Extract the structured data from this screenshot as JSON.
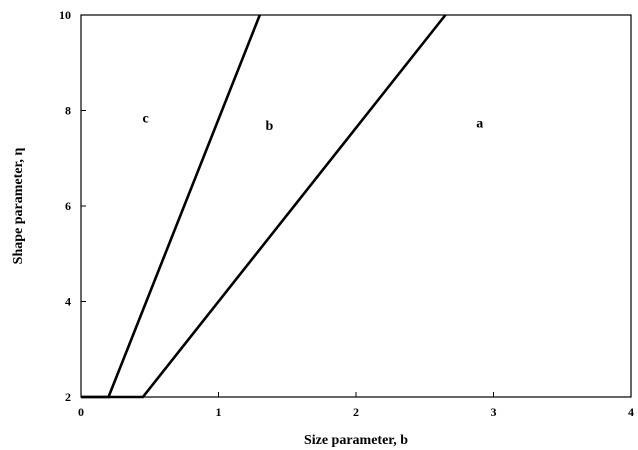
{
  "chart_data": {
    "type": "line",
    "title": "",
    "xlabel": "Size parameter, b",
    "ylabel": "Shape parameter, η",
    "xlim": [
      0,
      4
    ],
    "ylim": [
      2,
      10
    ],
    "xticks": [
      "0",
      "1",
      "2",
      "3",
      "4"
    ],
    "yticks": [
      "2",
      "4",
      "6",
      "8",
      "10"
    ],
    "grid": false,
    "legend": "none",
    "series": [
      {
        "x": [
          0,
          0.2,
          1.3
        ],
        "y": [
          2,
          2,
          10
        ]
      },
      {
        "x": [
          0,
          0.45,
          2.65
        ],
        "y": [
          2,
          2,
          10
        ]
      }
    ],
    "annotations": [
      {
        "text": "c",
        "x": 0.47,
        "y": 7.85
      },
      {
        "text": "b",
        "x": 1.37,
        "y": 7.7
      },
      {
        "text": "a",
        "x": 2.9,
        "y": 7.75
      }
    ]
  }
}
